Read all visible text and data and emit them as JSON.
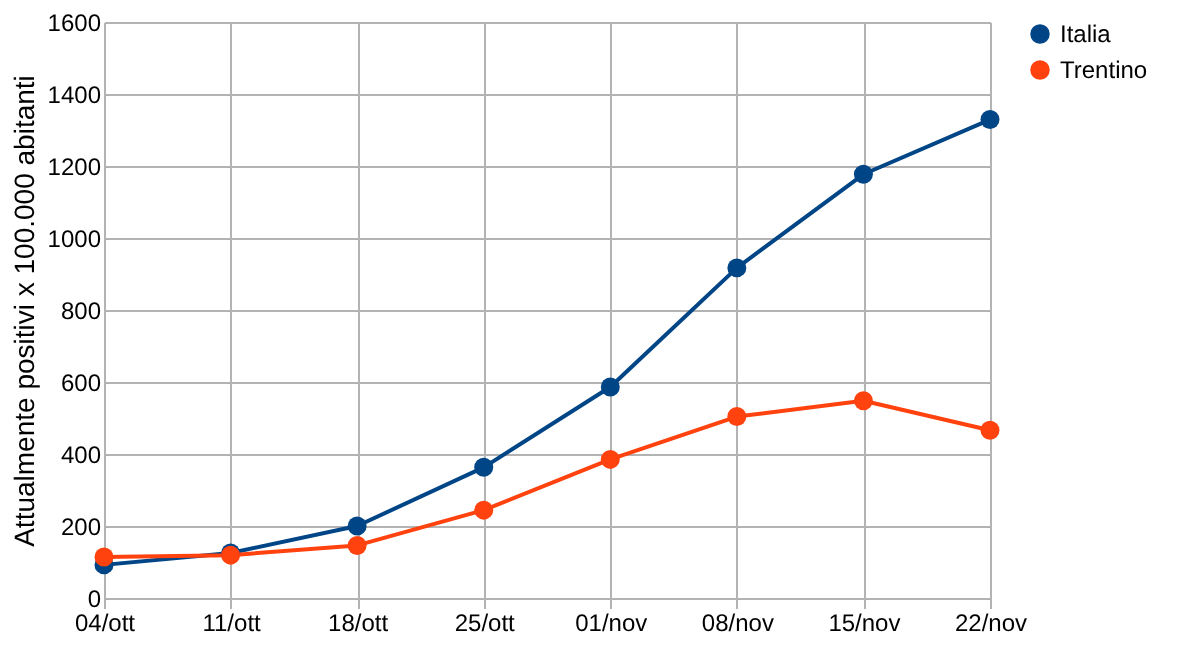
{
  "chart_data": {
    "type": "line",
    "ylabel": "Attualmente positivi x 100.000 abitanti",
    "categories": [
      "04/ott",
      "11/ott",
      "18/ott",
      "25/ott",
      "01/nov",
      "08/nov",
      "15/nov",
      "22/nov"
    ],
    "series": [
      {
        "name": "Italia",
        "color": "#004586",
        "values": [
          92,
          125,
          200,
          363,
          586,
          917,
          1177,
          1329
        ]
      },
      {
        "name": "Trentino",
        "color": "#ff420e",
        "values": [
          114,
          119,
          146,
          244,
          385,
          504,
          548,
          466
        ]
      }
    ],
    "ylim": [
      0,
      1600
    ],
    "yticks": [
      0,
      200,
      400,
      600,
      800,
      1000,
      1200,
      1400,
      1600
    ],
    "grid": true,
    "legend": "right",
    "marker": "circle",
    "line_style": "solid"
  }
}
